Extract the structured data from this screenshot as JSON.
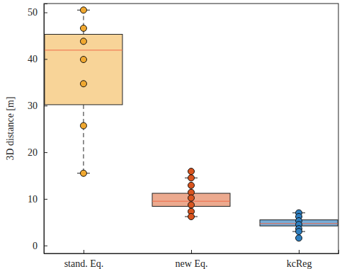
{
  "chart_data": {
    "type": "box",
    "y_label": "3D distance [m]",
    "categories": [
      "stand. Eq.",
      "new Eq.",
      "kcReg"
    ],
    "colors": [
      "#f0a830",
      "#d9541e",
      "#2e7fc0"
    ],
    "boxes": [
      {
        "low": 15.5,
        "q1": 30.2,
        "median": 41.9,
        "q3": 45.3,
        "high": 50.5,
        "points": [
          50.5,
          46.6,
          43.8,
          39.9,
          34.7,
          25.7,
          15.5
        ]
      },
      {
        "low": 6.2,
        "q1": 8.4,
        "median": 9.5,
        "q3": 11.2,
        "high": 14.5,
        "points": [
          15.9,
          14.5,
          12.9,
          11.4,
          10.2,
          8.7,
          7.3,
          6.2
        ]
      },
      {
        "low": 3.0,
        "q1": 4.2,
        "median": 4.7,
        "q3": 5.5,
        "high": 7.0,
        "points": [
          7.0,
          6.2,
          5.3,
          4.5,
          3.6,
          3.0,
          1.6
        ]
      }
    ],
    "ylim": [
      -1.7,
      51.9
    ],
    "yticks": [
      0,
      10,
      20,
      30,
      40,
      50
    ],
    "grid": false
  }
}
